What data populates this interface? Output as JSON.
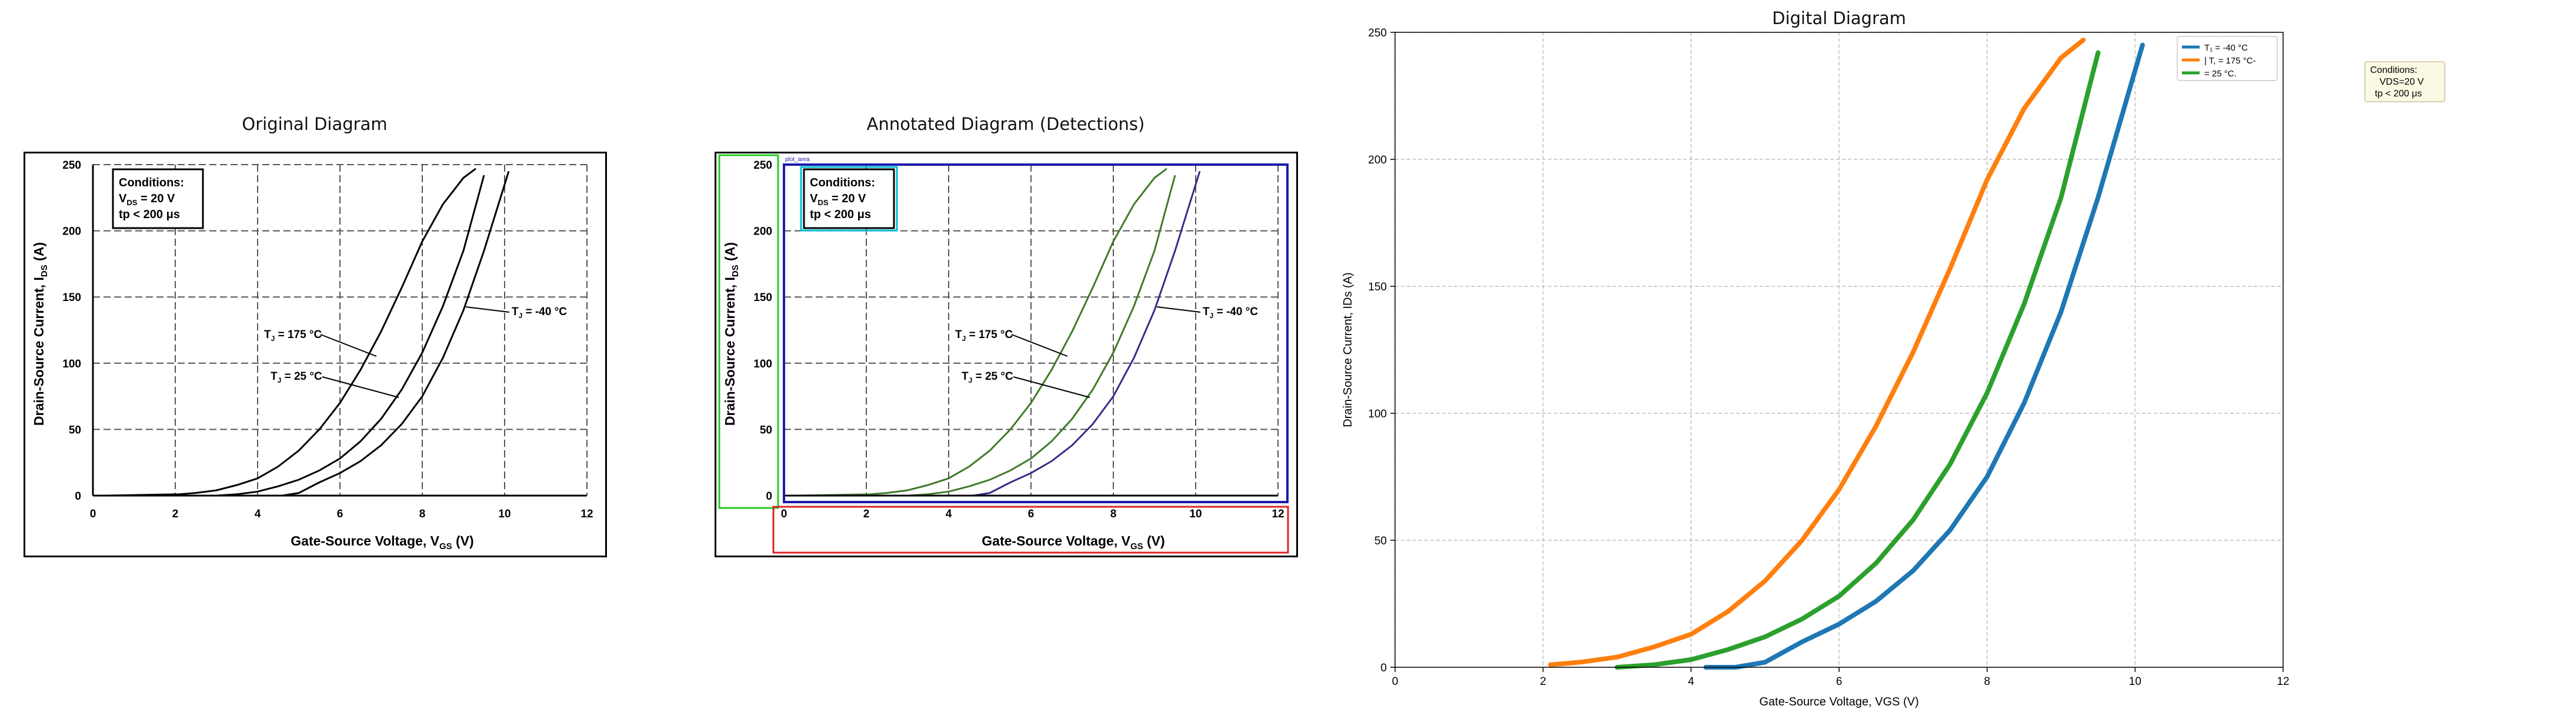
{
  "figure": {
    "panel1_title": "Original Diagram",
    "panel2_title": "Annotated Diagram (Detections)",
    "panel3_title": "Digital Diagram"
  },
  "original": {
    "conditions_title": "Conditions:",
    "conditions_vds": "V",
    "conditions_vds_sub": "DS",
    "conditions_vds_rest": " = 20 V",
    "conditions_tp": "tp < 200 μs",
    "ylabel_main": "Drain-Source Current, I",
    "ylabel_sub": "DS",
    "ylabel_unit": " (A)",
    "xlabel_main": "Gate-Source Voltage, V",
    "xlabel_sub": "GS",
    "xlabel_unit": " (V)",
    "label_175": "T",
    "label_175_sub": "J",
    "label_175_rest": " = 175 °C",
    "label_25_rest": " = 25 °C",
    "label_m40_rest": " = -40 °C",
    "xticks": [
      "0",
      "2",
      "4",
      "6",
      "8",
      "10",
      "12"
    ],
    "yticks": [
      "0",
      "50",
      "100",
      "150",
      "200",
      "250"
    ]
  },
  "annotated": {
    "plot_area_tag": "plot_area"
  },
  "digital": {
    "legend_items": [
      "T₁ = -40 °C",
      "| T, = 175 °C-",
      "= 25 °C."
    ],
    "conditions_box": [
      "Conditions:",
      "VDS=20 V",
      "tp < 200 μs"
    ]
  },
  "colors": {
    "c_m40": "#1f77b4",
    "c_175": "#ff7f0e",
    "c_25": "#2ca02c",
    "det_green": "#22cc22",
    "det_blue": "#1a1aaa",
    "det_red": "#dd2222",
    "det_cyan": "#00bcd4"
  },
  "chart_data": {
    "type": "line",
    "title": "Digital Diagram",
    "xlabel": "Gate-Source Voltage, VGS (V)",
    "ylabel": "Drain-Source Current, IDs (A)",
    "xlim": [
      0,
      12
    ],
    "ylim": [
      0,
      250
    ],
    "xticks": [
      0,
      2,
      4,
      6,
      8,
      10,
      12
    ],
    "yticks": [
      0,
      50,
      100,
      150,
      200,
      250
    ],
    "grid": true,
    "legend_position": "top-right",
    "series": [
      {
        "name": "T₁ = -40 °C",
        "color": "#1f77b4",
        "x": [
          4.2,
          4.6,
          5.0,
          5.5,
          6.0,
          6.5,
          7.0,
          7.5,
          8.0,
          8.5,
          9.0,
          9.5,
          10.1
        ],
        "y": [
          0,
          0,
          2,
          10,
          17,
          26,
          38,
          54,
          75,
          104,
          140,
          185,
          245
        ]
      },
      {
        "name": "| T, = 175 °C-",
        "color": "#ff7f0e",
        "x": [
          2.1,
          2.5,
          3.0,
          3.5,
          4.0,
          4.5,
          5.0,
          5.5,
          6.0,
          6.5,
          7.0,
          7.5,
          8.0,
          8.5,
          9.0,
          9.3
        ],
        "y": [
          1,
          2,
          4,
          8,
          13,
          22,
          34,
          50,
          70,
          95,
          124,
          157,
          192,
          220,
          240,
          247
        ]
      },
      {
        "name": "= 25 °C.",
        "color": "#2ca02c",
        "x": [
          3.0,
          3.5,
          4.0,
          4.5,
          5.0,
          5.5,
          6.0,
          6.5,
          7.0,
          7.5,
          8.0,
          8.5,
          9.0,
          9.5
        ],
        "y": [
          0,
          1,
          3,
          7,
          12,
          19,
          28,
          41,
          58,
          80,
          108,
          143,
          185,
          242
        ]
      }
    ]
  }
}
